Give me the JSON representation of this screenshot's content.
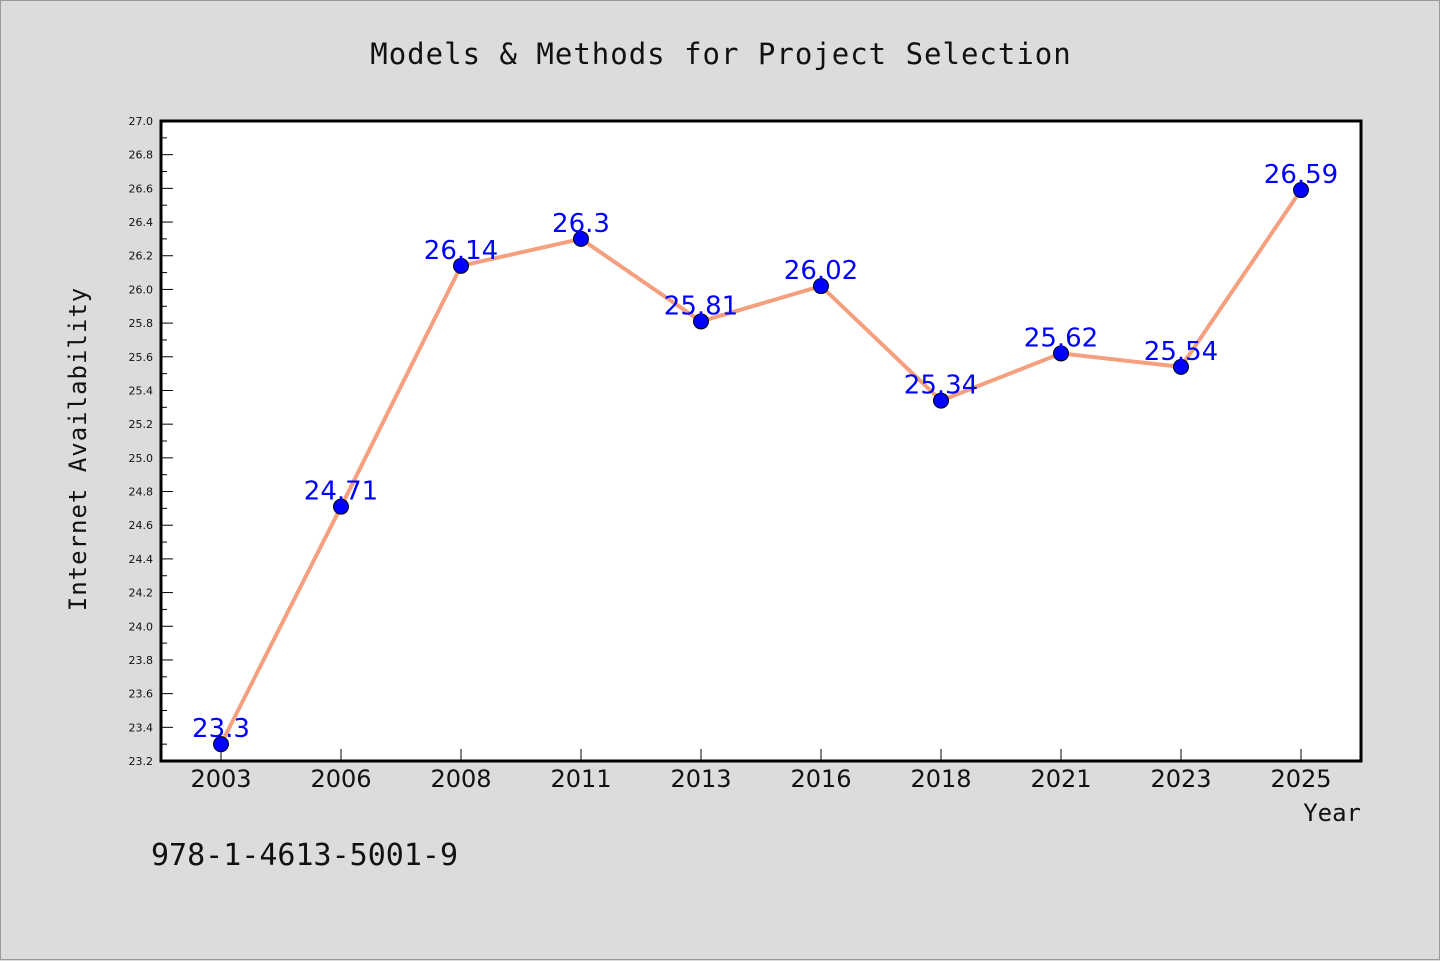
{
  "chart_data": {
    "type": "line",
    "title": "Models & Methods for Project Selection",
    "xlabel": "Year",
    "ylabel": "Internet Availability",
    "categories": [
      "2003",
      "2006",
      "2008",
      "2011",
      "2013",
      "2016",
      "2018",
      "2021",
      "2023",
      "2025"
    ],
    "values": [
      23.3,
      24.71,
      26.14,
      26.3,
      25.81,
      26.02,
      25.34,
      25.62,
      25.54,
      26.59
    ],
    "data_labels": [
      "23.3",
      "24.71",
      "26.14",
      "26.3",
      "25.81",
      "26.02",
      "25.34",
      "25.62",
      "25.54",
      "26.59"
    ],
    "ylim": [
      23.2,
      27.0
    ],
    "yticks": [
      "23.2",
      "23.4",
      "23.6",
      "23.8",
      "24.0",
      "24.2",
      "24.4",
      "24.6",
      "24.8",
      "25.0",
      "25.2",
      "25.4",
      "25.6",
      "25.8",
      "26.0",
      "26.2",
      "26.4",
      "26.6",
      "26.8",
      "27.0"
    ],
    "grid": false,
    "line_color": "#f4a07e",
    "marker_color": "#0000ff",
    "label_color": "#0000ff",
    "background_color": "#dcdcdc",
    "plot_background": "#ffffff"
  },
  "footer": {
    "isbn": "978-1-4613-5001-9"
  }
}
